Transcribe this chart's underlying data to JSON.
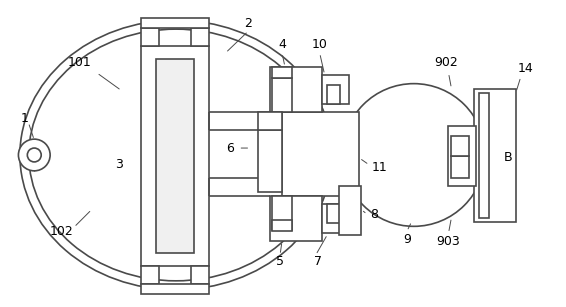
{
  "bg_color": "#ffffff",
  "line_color": "#4a4a4a",
  "line_width": 1.2,
  "thin_line": 0.8,
  "font_size": 9,
  "label_color": "#000000"
}
